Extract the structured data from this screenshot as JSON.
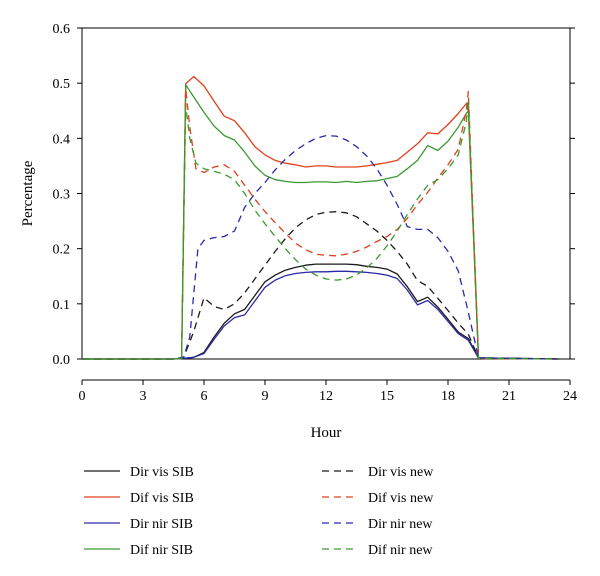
{
  "chart_data": {
    "type": "line",
    "title": "",
    "xlabel": "Hour",
    "ylabel": "Percentage",
    "xlim": [
      0,
      24
    ],
    "ylim": [
      0,
      0.6
    ],
    "xticks": [
      0,
      3,
      6,
      9,
      12,
      15,
      18,
      21,
      24
    ],
    "yticks": [
      0.0,
      0.1,
      0.2,
      0.3,
      0.4,
      0.5,
      0.6
    ],
    "xtick_labels": [
      "0",
      "3",
      "6",
      "9",
      "12",
      "15",
      "18",
      "21",
      "24"
    ],
    "ytick_labels": [
      "0.0",
      "0.1",
      "0.2",
      "0.3",
      "0.4",
      "0.5",
      "0.6"
    ],
    "grid": false,
    "legend_position": "bottom",
    "series": [
      {
        "name": "Dir vis SIB",
        "color": "#1a1a1a",
        "dash": "solid",
        "x": [
          0,
          4.5,
          5.0,
          5.5,
          6.0,
          6.5,
          7.0,
          7.5,
          8.0,
          8.5,
          9.0,
          9.5,
          10.0,
          10.5,
          11.0,
          11.5,
          12.0,
          12.5,
          13.0,
          13.5,
          14.0,
          14.5,
          15.0,
          15.5,
          16.0,
          16.5,
          17.0,
          17.5,
          18.0,
          18.5,
          19.0,
          19.5,
          23.5
        ],
        "y": [
          0,
          0,
          0.001,
          0.003,
          0.012,
          0.04,
          0.065,
          0.082,
          0.09,
          0.115,
          0.14,
          0.152,
          0.161,
          0.166,
          0.17,
          0.172,
          0.172,
          0.172,
          0.172,
          0.171,
          0.168,
          0.166,
          0.163,
          0.154,
          0.131,
          0.104,
          0.112,
          0.094,
          0.072,
          0.049,
          0.037,
          0.002,
          0
        ]
      },
      {
        "name": "Dif vis SIB",
        "color": "#e0401a",
        "dash": "solid",
        "x": [
          0,
          4.5,
          4.9,
          5.1,
          5.5,
          6.0,
          6.5,
          7.0,
          7.5,
          8.0,
          8.5,
          9.0,
          9.5,
          10.0,
          10.5,
          11.0,
          11.5,
          12.0,
          12.5,
          13.0,
          13.5,
          14.0,
          14.5,
          15.0,
          15.5,
          16.0,
          16.5,
          17.0,
          17.5,
          18.0,
          18.5,
          18.9,
          19.0,
          19.5,
          23.5
        ],
        "y": [
          0,
          0,
          0.001,
          0.499,
          0.512,
          0.495,
          0.467,
          0.44,
          0.432,
          0.41,
          0.385,
          0.37,
          0.36,
          0.355,
          0.352,
          0.348,
          0.35,
          0.35,
          0.348,
          0.348,
          0.348,
          0.35,
          0.353,
          0.356,
          0.36,
          0.375,
          0.39,
          0.41,
          0.408,
          0.425,
          0.445,
          0.463,
          0.462,
          0.001,
          0
        ]
      },
      {
        "name": "Dir nir SIB",
        "color": "#2a2aa8",
        "dash": "solid",
        "x": [
          0,
          4.5,
          5.0,
          5.5,
          6.0,
          6.5,
          7.0,
          7.5,
          8.0,
          8.5,
          9.0,
          9.5,
          10.0,
          10.5,
          11.0,
          11.5,
          12.0,
          12.5,
          13.0,
          13.5,
          14.0,
          14.5,
          15.0,
          15.5,
          16.0,
          16.5,
          17.0,
          17.5,
          18.0,
          18.5,
          19.0,
          19.5,
          23.5
        ],
        "y": [
          0,
          0,
          0.001,
          0.003,
          0.01,
          0.036,
          0.06,
          0.075,
          0.08,
          0.105,
          0.13,
          0.143,
          0.151,
          0.155,
          0.157,
          0.158,
          0.158,
          0.159,
          0.159,
          0.158,
          0.157,
          0.155,
          0.152,
          0.146,
          0.125,
          0.098,
          0.106,
          0.09,
          0.068,
          0.046,
          0.034,
          0.002,
          0
        ]
      },
      {
        "name": "Dif nir SIB",
        "color": "#3a9a30",
        "dash": "solid",
        "x": [
          0,
          4.5,
          4.9,
          5.1,
          5.5,
          6.0,
          6.5,
          7.0,
          7.5,
          8.0,
          8.5,
          9.0,
          9.5,
          10.0,
          10.5,
          11.0,
          11.5,
          12.0,
          12.5,
          13.0,
          13.5,
          14.0,
          14.5,
          15.0,
          15.5,
          16.0,
          16.5,
          17.0,
          17.5,
          18.0,
          18.5,
          18.9,
          19.0,
          19.5,
          23.5
        ],
        "y": [
          0,
          0,
          0.001,
          0.497,
          0.475,
          0.447,
          0.422,
          0.405,
          0.397,
          0.375,
          0.35,
          0.333,
          0.325,
          0.322,
          0.32,
          0.32,
          0.321,
          0.321,
          0.32,
          0.322,
          0.32,
          0.322,
          0.323,
          0.327,
          0.331,
          0.345,
          0.36,
          0.387,
          0.378,
          0.395,
          0.42,
          0.445,
          0.45,
          0.001,
          0
        ]
      },
      {
        "name": "Dir vis new",
        "color": "#1a1a1a",
        "dash": "dashed",
        "x": [
          0,
          4.5,
          5.0,
          5.5,
          6.0,
          6.5,
          7.0,
          7.5,
          8.0,
          8.5,
          9.0,
          9.5,
          10.0,
          10.5,
          11.0,
          11.5,
          12.0,
          12.5,
          13.0,
          13.5,
          14.0,
          14.5,
          15.0,
          15.5,
          16.0,
          16.5,
          17.0,
          17.5,
          18.0,
          18.5,
          19.0,
          19.5,
          23.5
        ],
        "y": [
          0,
          0,
          0.003,
          0.05,
          0.111,
          0.095,
          0.09,
          0.1,
          0.12,
          0.145,
          0.17,
          0.195,
          0.218,
          0.238,
          0.252,
          0.262,
          0.266,
          0.267,
          0.265,
          0.258,
          0.245,
          0.232,
          0.215,
          0.195,
          0.172,
          0.142,
          0.132,
          0.11,
          0.088,
          0.065,
          0.045,
          0.002,
          0
        ]
      },
      {
        "name": "Dif vis new",
        "color": "#e0401a",
        "dash": "dashed",
        "x": [
          0,
          4.5,
          4.9,
          5.1,
          5.3,
          5.6,
          6.0,
          6.5,
          7.0,
          7.5,
          8.0,
          8.5,
          9.0,
          9.5,
          10.0,
          10.5,
          11.0,
          11.5,
          12.0,
          12.5,
          13.0,
          13.5,
          14.0,
          14.5,
          15.0,
          15.5,
          16.0,
          16.5,
          17.0,
          17.5,
          18.0,
          18.5,
          18.9,
          19.0,
          19.5,
          23.5
        ],
        "y": [
          0,
          0,
          0.001,
          0.49,
          0.42,
          0.345,
          0.338,
          0.348,
          0.352,
          0.34,
          0.315,
          0.29,
          0.267,
          0.247,
          0.228,
          0.21,
          0.198,
          0.19,
          0.188,
          0.187,
          0.19,
          0.195,
          0.203,
          0.213,
          0.222,
          0.235,
          0.255,
          0.28,
          0.302,
          0.328,
          0.352,
          0.38,
          0.45,
          0.485,
          0.001,
          0
        ]
      },
      {
        "name": "Dir nir new",
        "color": "#2a2aa8",
        "dash": "dashed",
        "x": [
          0,
          4.5,
          5.0,
          5.3,
          5.7,
          6.0,
          6.5,
          7.0,
          7.5,
          8.0,
          8.5,
          9.0,
          9.5,
          10.0,
          10.5,
          11.0,
          11.5,
          12.0,
          12.5,
          13.0,
          13.5,
          14.0,
          14.5,
          15.0,
          15.5,
          16.0,
          16.5,
          17.0,
          17.5,
          18.0,
          18.5,
          19.0,
          19.5,
          23.5
        ],
        "y": [
          0,
          0,
          0.003,
          0.04,
          0.2,
          0.215,
          0.22,
          0.222,
          0.232,
          0.275,
          0.3,
          0.32,
          0.343,
          0.362,
          0.378,
          0.39,
          0.4,
          0.405,
          0.404,
          0.397,
          0.385,
          0.368,
          0.345,
          0.315,
          0.28,
          0.24,
          0.235,
          0.235,
          0.22,
          0.195,
          0.16,
          0.085,
          0.002,
          0
        ]
      },
      {
        "name": "Dif nir new",
        "color": "#3a9a30",
        "dash": "dashed",
        "x": [
          0,
          4.5,
          4.9,
          5.1,
          5.3,
          5.6,
          6.0,
          6.5,
          7.0,
          7.5,
          8.0,
          8.5,
          9.0,
          9.5,
          10.0,
          10.5,
          11.0,
          11.5,
          12.0,
          12.5,
          13.0,
          13.5,
          14.0,
          14.5,
          15.0,
          15.5,
          16.0,
          16.5,
          17.0,
          17.5,
          18.0,
          18.5,
          18.9,
          19.0,
          19.5,
          23.5
        ],
        "y": [
          0,
          0,
          0.001,
          0.46,
          0.4,
          0.355,
          0.345,
          0.34,
          0.335,
          0.325,
          0.3,
          0.27,
          0.245,
          0.222,
          0.2,
          0.18,
          0.163,
          0.152,
          0.145,
          0.143,
          0.145,
          0.152,
          0.165,
          0.182,
          0.205,
          0.232,
          0.262,
          0.29,
          0.315,
          0.325,
          0.345,
          0.37,
          0.43,
          0.47,
          0.001,
          0
        ]
      }
    ]
  }
}
